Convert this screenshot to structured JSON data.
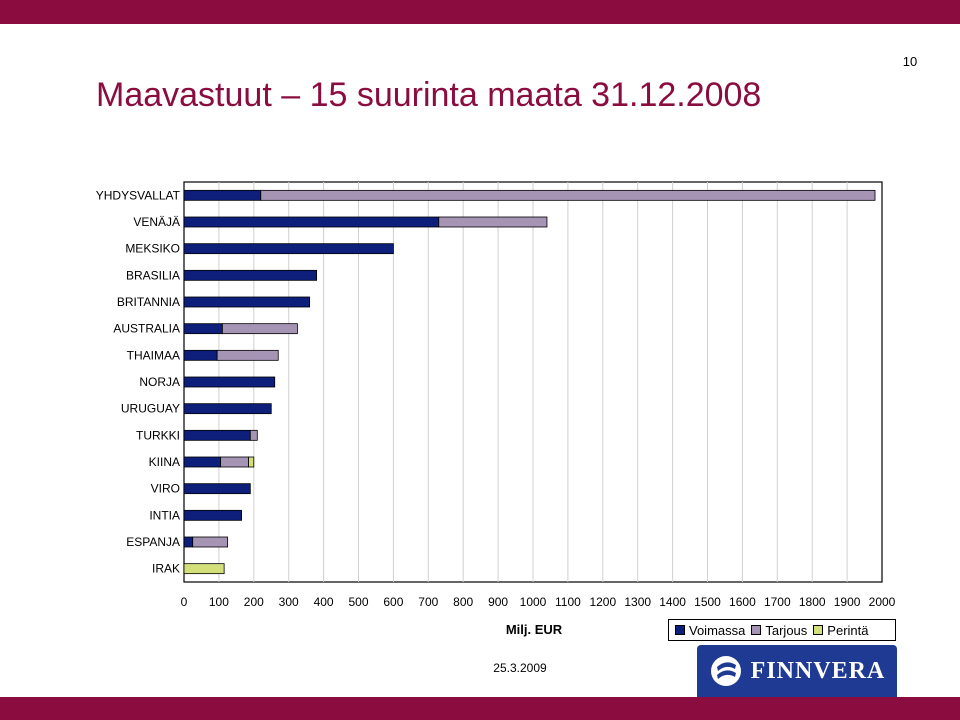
{
  "colors": {
    "bar_band": "#8b0c3f",
    "title": "#8b0c3f",
    "logo_bg": "#1f3a93",
    "voimassa": "#0d1f7a",
    "tarjous": "#a694b4",
    "perinta": "#d3e07a"
  },
  "page": {
    "number": "10",
    "date": "25.3.2009"
  },
  "title": "Maavastuut – 15 suurinta maata 31.12.2008",
  "logo": {
    "text": "FINNVERA",
    "icon": "finnvera-logo-icon"
  },
  "legend": [
    {
      "label": "Voimassa",
      "color": "#0d1f7a"
    },
    {
      "label": "Tarjous",
      "color": "#a694b4"
    },
    {
      "label": "Perintä",
      "color": "#d3e07a"
    }
  ],
  "chart_data": {
    "type": "bar",
    "orientation": "horizontal",
    "stacked": true,
    "categories": [
      "YHDYSVALLAT",
      "VENÄJÄ",
      "MEKSIKO",
      "BRASILIA",
      "BRITANNIA",
      "AUSTRALIA",
      "THAIMAA",
      "NORJA",
      "URUGUAY",
      "TURKKI",
      "KIINA",
      "VIRO",
      "INTIA",
      "ESPANJA",
      "IRAK"
    ],
    "series": [
      {
        "name": "Voimassa",
        "values": [
          220,
          730,
          600,
          380,
          360,
          110,
          95,
          260,
          250,
          190,
          105,
          190,
          165,
          25,
          0
        ]
      },
      {
        "name": "Tarjous",
        "values": [
          1760,
          310,
          0,
          0,
          0,
          215,
          175,
          0,
          0,
          20,
          80,
          0,
          0,
          100,
          0
        ]
      },
      {
        "name": "Perintä",
        "values": [
          0,
          0,
          0,
          0,
          0,
          0,
          0,
          0,
          0,
          0,
          15,
          0,
          0,
          0,
          115
        ]
      }
    ],
    "xlabel": "Milj. EUR",
    "xlim": [
      0,
      2000
    ],
    "xticks": [
      0,
      100,
      200,
      300,
      400,
      500,
      600,
      700,
      800,
      900,
      1000,
      1100,
      1200,
      1300,
      1400,
      1500,
      1600,
      1700,
      1800,
      1900,
      2000
    ],
    "grid": "vertical",
    "legend_position": "bottom-right"
  }
}
